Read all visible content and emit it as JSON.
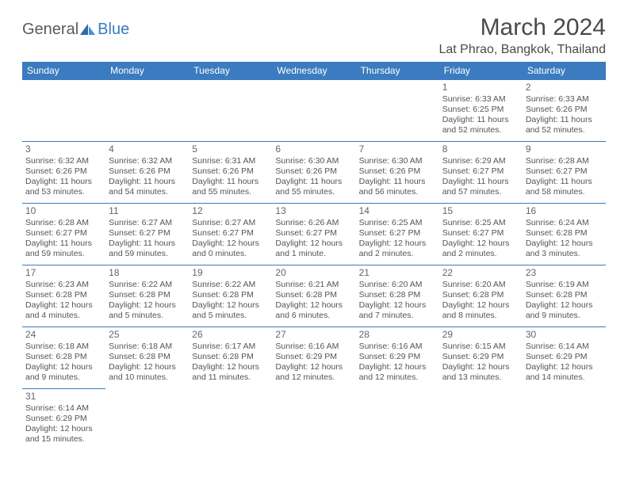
{
  "logo": {
    "text1": "General",
    "text2": "Blue"
  },
  "title": "March 2024",
  "location": "Lat Phrao, Bangkok, Thailand",
  "colors": {
    "header_bg": "#3b7bbf",
    "header_text": "#ffffff",
    "cell_border": "#3b7bbf",
    "text": "#555555",
    "title_text": "#4a4a4a",
    "logo_gray": "#5a5a5a",
    "logo_blue": "#3b7bbf",
    "background": "#ffffff"
  },
  "typography": {
    "title_fontsize": 30,
    "location_fontsize": 16,
    "dayheader_fontsize": 12,
    "daynum_fontsize": 12,
    "cell_fontsize": 10.5
  },
  "day_headers": [
    "Sunday",
    "Monday",
    "Tuesday",
    "Wednesday",
    "Thursday",
    "Friday",
    "Saturday"
  ],
  "weeks": [
    [
      null,
      null,
      null,
      null,
      null,
      {
        "n": "1",
        "sr": "Sunrise: 6:33 AM",
        "ss": "Sunset: 6:25 PM",
        "dl1": "Daylight: 11 hours",
        "dl2": "and 52 minutes."
      },
      {
        "n": "2",
        "sr": "Sunrise: 6:33 AM",
        "ss": "Sunset: 6:26 PM",
        "dl1": "Daylight: 11 hours",
        "dl2": "and 52 minutes."
      }
    ],
    [
      {
        "n": "3",
        "sr": "Sunrise: 6:32 AM",
        "ss": "Sunset: 6:26 PM",
        "dl1": "Daylight: 11 hours",
        "dl2": "and 53 minutes."
      },
      {
        "n": "4",
        "sr": "Sunrise: 6:32 AM",
        "ss": "Sunset: 6:26 PM",
        "dl1": "Daylight: 11 hours",
        "dl2": "and 54 minutes."
      },
      {
        "n": "5",
        "sr": "Sunrise: 6:31 AM",
        "ss": "Sunset: 6:26 PM",
        "dl1": "Daylight: 11 hours",
        "dl2": "and 55 minutes."
      },
      {
        "n": "6",
        "sr": "Sunrise: 6:30 AM",
        "ss": "Sunset: 6:26 PM",
        "dl1": "Daylight: 11 hours",
        "dl2": "and 55 minutes."
      },
      {
        "n": "7",
        "sr": "Sunrise: 6:30 AM",
        "ss": "Sunset: 6:26 PM",
        "dl1": "Daylight: 11 hours",
        "dl2": "and 56 minutes."
      },
      {
        "n": "8",
        "sr": "Sunrise: 6:29 AM",
        "ss": "Sunset: 6:27 PM",
        "dl1": "Daylight: 11 hours",
        "dl2": "and 57 minutes."
      },
      {
        "n": "9",
        "sr": "Sunrise: 6:28 AM",
        "ss": "Sunset: 6:27 PM",
        "dl1": "Daylight: 11 hours",
        "dl2": "and 58 minutes."
      }
    ],
    [
      {
        "n": "10",
        "sr": "Sunrise: 6:28 AM",
        "ss": "Sunset: 6:27 PM",
        "dl1": "Daylight: 11 hours",
        "dl2": "and 59 minutes."
      },
      {
        "n": "11",
        "sr": "Sunrise: 6:27 AM",
        "ss": "Sunset: 6:27 PM",
        "dl1": "Daylight: 11 hours",
        "dl2": "and 59 minutes."
      },
      {
        "n": "12",
        "sr": "Sunrise: 6:27 AM",
        "ss": "Sunset: 6:27 PM",
        "dl1": "Daylight: 12 hours",
        "dl2": "and 0 minutes."
      },
      {
        "n": "13",
        "sr": "Sunrise: 6:26 AM",
        "ss": "Sunset: 6:27 PM",
        "dl1": "Daylight: 12 hours",
        "dl2": "and 1 minute."
      },
      {
        "n": "14",
        "sr": "Sunrise: 6:25 AM",
        "ss": "Sunset: 6:27 PM",
        "dl1": "Daylight: 12 hours",
        "dl2": "and 2 minutes."
      },
      {
        "n": "15",
        "sr": "Sunrise: 6:25 AM",
        "ss": "Sunset: 6:27 PM",
        "dl1": "Daylight: 12 hours",
        "dl2": "and 2 minutes."
      },
      {
        "n": "16",
        "sr": "Sunrise: 6:24 AM",
        "ss": "Sunset: 6:28 PM",
        "dl1": "Daylight: 12 hours",
        "dl2": "and 3 minutes."
      }
    ],
    [
      {
        "n": "17",
        "sr": "Sunrise: 6:23 AM",
        "ss": "Sunset: 6:28 PM",
        "dl1": "Daylight: 12 hours",
        "dl2": "and 4 minutes."
      },
      {
        "n": "18",
        "sr": "Sunrise: 6:22 AM",
        "ss": "Sunset: 6:28 PM",
        "dl1": "Daylight: 12 hours",
        "dl2": "and 5 minutes."
      },
      {
        "n": "19",
        "sr": "Sunrise: 6:22 AM",
        "ss": "Sunset: 6:28 PM",
        "dl1": "Daylight: 12 hours",
        "dl2": "and 5 minutes."
      },
      {
        "n": "20",
        "sr": "Sunrise: 6:21 AM",
        "ss": "Sunset: 6:28 PM",
        "dl1": "Daylight: 12 hours",
        "dl2": "and 6 minutes."
      },
      {
        "n": "21",
        "sr": "Sunrise: 6:20 AM",
        "ss": "Sunset: 6:28 PM",
        "dl1": "Daylight: 12 hours",
        "dl2": "and 7 minutes."
      },
      {
        "n": "22",
        "sr": "Sunrise: 6:20 AM",
        "ss": "Sunset: 6:28 PM",
        "dl1": "Daylight: 12 hours",
        "dl2": "and 8 minutes."
      },
      {
        "n": "23",
        "sr": "Sunrise: 6:19 AM",
        "ss": "Sunset: 6:28 PM",
        "dl1": "Daylight: 12 hours",
        "dl2": "and 9 minutes."
      }
    ],
    [
      {
        "n": "24",
        "sr": "Sunrise: 6:18 AM",
        "ss": "Sunset: 6:28 PM",
        "dl1": "Daylight: 12 hours",
        "dl2": "and 9 minutes."
      },
      {
        "n": "25",
        "sr": "Sunrise: 6:18 AM",
        "ss": "Sunset: 6:28 PM",
        "dl1": "Daylight: 12 hours",
        "dl2": "and 10 minutes."
      },
      {
        "n": "26",
        "sr": "Sunrise: 6:17 AM",
        "ss": "Sunset: 6:28 PM",
        "dl1": "Daylight: 12 hours",
        "dl2": "and 11 minutes."
      },
      {
        "n": "27",
        "sr": "Sunrise: 6:16 AM",
        "ss": "Sunset: 6:29 PM",
        "dl1": "Daylight: 12 hours",
        "dl2": "and 12 minutes."
      },
      {
        "n": "28",
        "sr": "Sunrise: 6:16 AM",
        "ss": "Sunset: 6:29 PM",
        "dl1": "Daylight: 12 hours",
        "dl2": "and 12 minutes."
      },
      {
        "n": "29",
        "sr": "Sunrise: 6:15 AM",
        "ss": "Sunset: 6:29 PM",
        "dl1": "Daylight: 12 hours",
        "dl2": "and 13 minutes."
      },
      {
        "n": "30",
        "sr": "Sunrise: 6:14 AM",
        "ss": "Sunset: 6:29 PM",
        "dl1": "Daylight: 12 hours",
        "dl2": "and 14 minutes."
      }
    ],
    [
      {
        "n": "31",
        "sr": "Sunrise: 6:14 AM",
        "ss": "Sunset: 6:29 PM",
        "dl1": "Daylight: 12 hours",
        "dl2": "and 15 minutes."
      },
      null,
      null,
      null,
      null,
      null,
      null
    ]
  ]
}
